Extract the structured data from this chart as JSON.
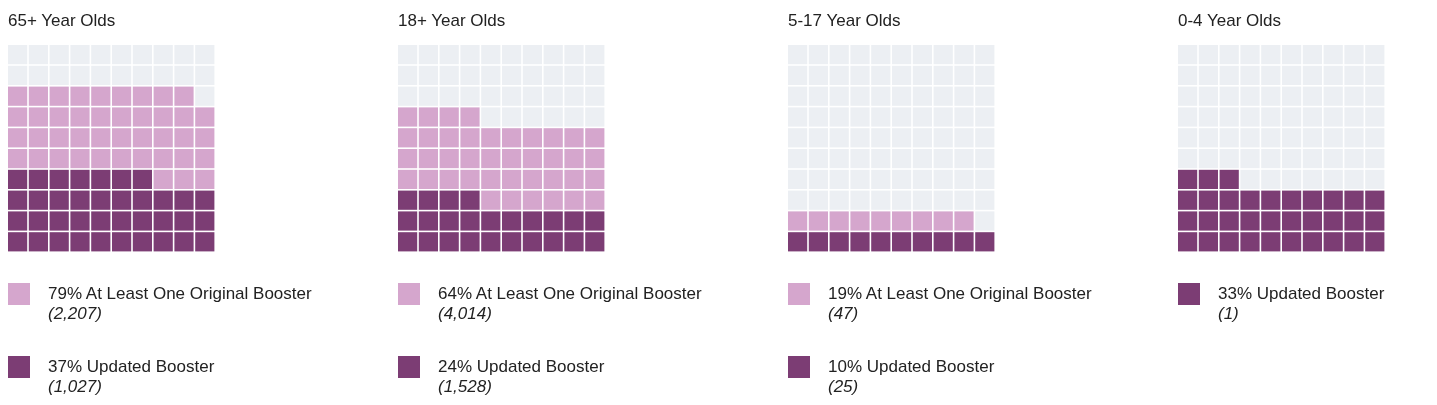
{
  "chart_data": [
    {
      "type": "other",
      "title": "65+ Year Olds",
      "categories": [
        "At Least One Original Booster",
        "Updated Booster"
      ],
      "values": [
        79,
        37
      ],
      "value_labels": [
        "79%",
        "37%"
      ],
      "annotations": [
        "(2,207)",
        "(1,027)"
      ],
      "colors": [
        "#d5a6cd",
        "#7c3d74"
      ]
    },
    {
      "type": "other",
      "title": "18+ Year Olds",
      "categories": [
        "At Least One Original Booster",
        "Updated Booster"
      ],
      "values": [
        64,
        24
      ],
      "value_labels": [
        "64%",
        "24%"
      ],
      "annotations": [
        "(4,014)",
        "(1,528)"
      ],
      "colors": [
        "#d5a6cd",
        "#7c3d74"
      ]
    },
    {
      "type": "other",
      "title": "5-17 Year Olds",
      "categories": [
        "At Least One Original Booster",
        "Updated Booster"
      ],
      "values": [
        19,
        10
      ],
      "value_labels": [
        "19%",
        "10%"
      ],
      "annotations": [
        "(47)",
        "(25)"
      ],
      "colors": [
        "#d5a6cd",
        "#7c3d74"
      ]
    },
    {
      "type": "other",
      "title": "0-4 Year Olds",
      "categories": [
        "Updated Booster"
      ],
      "values": [
        33
      ],
      "value_labels": [
        "33%"
      ],
      "annotations": [
        "(1)"
      ],
      "colors": [
        "#7c3d74"
      ]
    }
  ]
}
